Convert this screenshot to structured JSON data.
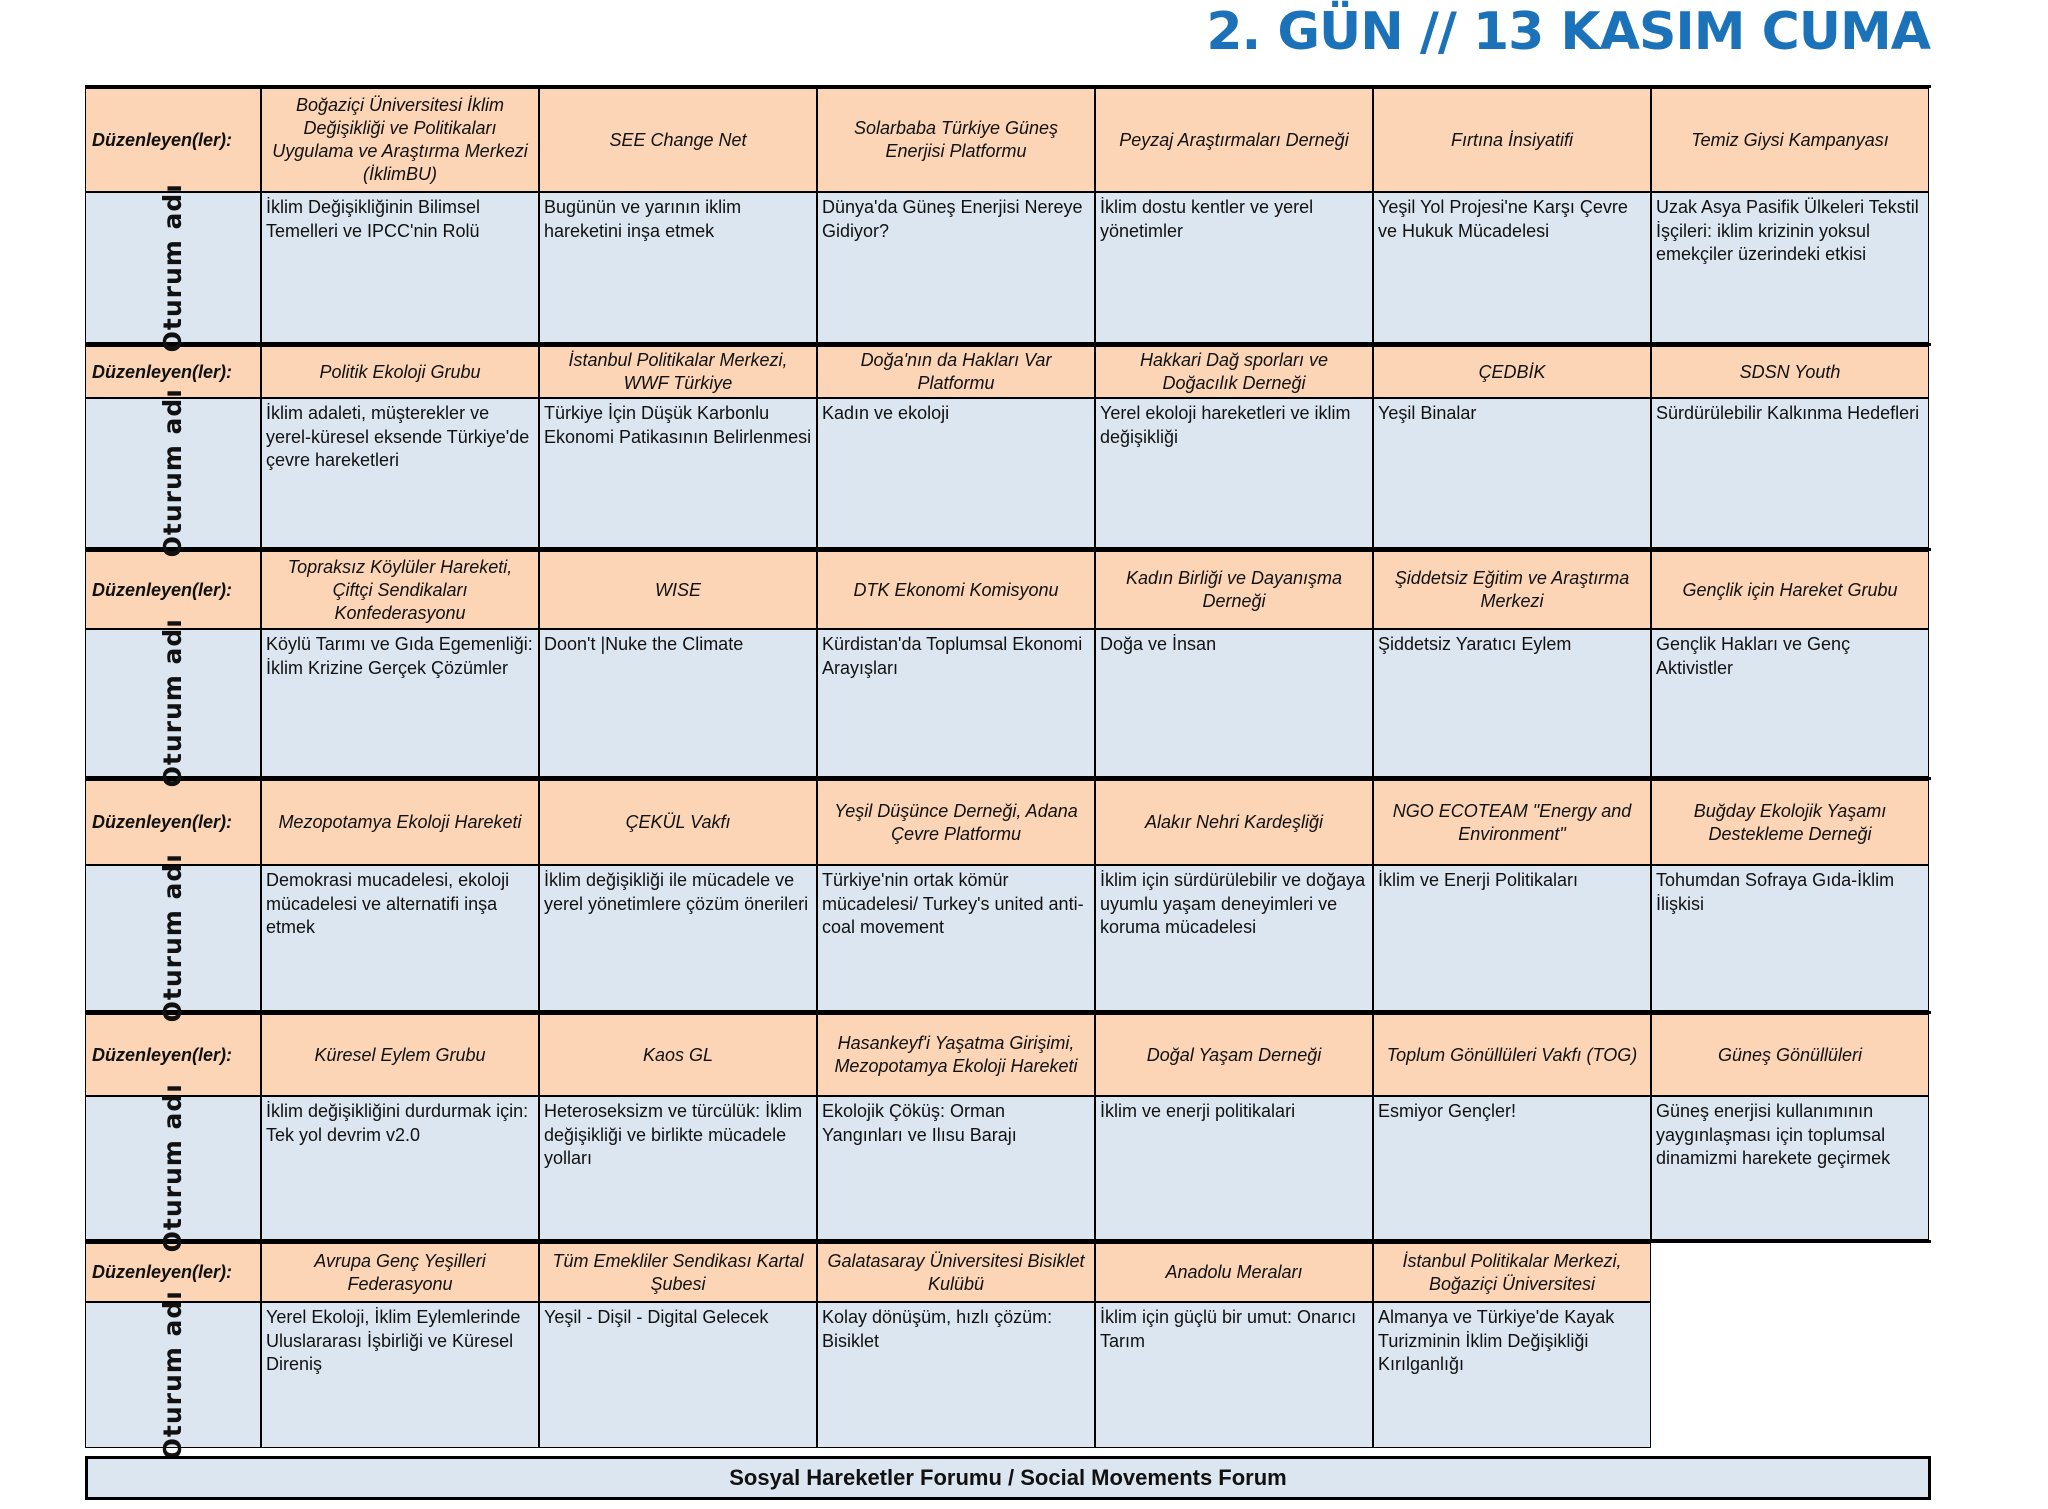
{
  "title": "2. GÜN // 13 KASIM CUMA",
  "labels": {
    "organizer": "Düzenleyen(ler):",
    "session": "Oturum adı"
  },
  "colors": {
    "organizer_bg": "#fbd5b5",
    "session_bg": "#dce6f1",
    "title": "#1b72b9"
  },
  "blocks": [
    {
      "organizers": [
        "Boğaziçi Üniversitesi İklim Değişikliği ve Politikaları Uygulama ve Araştırma Merkezi (İklimBU)",
        "SEE Change Net",
        "Solarbaba Türkiye Güneş Enerjisi Platformu",
        "Peyzaj Araştırmaları Derneği",
        "Fırtına İnsiyatifi",
        "Temiz Giysi Kampanyası"
      ],
      "sessions": [
        "İklim Değişikliğinin Bilimsel Temelleri ve IPCC'nin Rolü",
        "Bugünün ve yarının iklim hareketini inşa etmek",
        "Dünya'da Güneş Enerjisi Nereye Gidiyor?",
        "İklim dostu kentler ve yerel yönetimler",
        "Yeşil Yol Projesi'ne Karşı Çevre ve Hukuk Mücadelesi",
        "Uzak Asya  Pasifik Ülkeleri Tekstil İşçileri: iklim krizinin yoksul emekçiler üzerindeki etkisi"
      ]
    },
    {
      "organizers": [
        "Politik Ekoloji Grubu",
        "İstanbul Politikalar Merkezi, WWF Türkiye",
        "Doğa'nın da Hakları Var Platformu",
        "Hakkari Dağ sporları ve Doğacılık Derneği",
        "ÇEDBİK",
        "SDSN Youth"
      ],
      "sessions": [
        "İklim adaleti, müşterekler ve yerel-küresel eksende Türkiye'de çevre hareketleri",
        "Türkiye İçin Düşük Karbonlu Ekonomi Patikasının Belirlenmesi",
        "Kadın ve ekoloji",
        "Yerel ekoloji hareketleri ve iklim değişikliği",
        "Yeşil Binalar",
        "Sürdürülebilir Kalkınma Hedefleri"
      ]
    },
    {
      "organizers": [
        "Topraksız Köylüler Hareketi, Çiftçi Sendikaları Konfederasyonu",
        "WISE",
        "DTK Ekonomi Komisyonu",
        "Kadın Birliği ve Dayanışma Derneği",
        "Şiddetsiz Eğitim ve Araştırma Merkezi",
        "Gençlik için Hareket Grubu"
      ],
      "sessions": [
        " Köylü Tarımı ve Gıda Egemenliği: İklim Krizine Gerçek Çözümler",
        "Doon't |Nuke the Climate",
        "Kürdistan'da Toplumsal Ekonomi Arayışları",
        "Doğa ve İnsan",
        "Şiddetsiz Yaratıcı Eylem",
        "Gençlik Hakları ve Genç Aktivistler"
      ]
    },
    {
      "organizers": [
        "Mezopotamya Ekoloji Hareketi",
        "ÇEKÜL Vakfı",
        "Yeşil Düşünce Derneği, Adana Çevre Platformu",
        "Alakır Nehri Kardeşliği",
        "NGO ECOTEAM \"Energy and Environment\"",
        "Buğday Ekolojik Yaşamı Destekleme Derneği"
      ],
      "sessions": [
        "Demokrasi mucadelesi, ekoloji mücadelesi ve alternatifi inşa etmek",
        "İklim değişikliği ile mücadele  ve yerel yönetimlere çözüm önerileri",
        "Türkiye'nin ortak kömür mücadelesi/ Turkey's united anti-coal movement",
        "İklim için sürdürülebilir ve doğaya uyumlu yaşam deneyimleri ve koruma mücadelesi",
        "İklim ve Enerji Politikaları",
        "Tohumdan Sofraya Gıda-İklim İlişkisi"
      ]
    },
    {
      "organizers": [
        "Küresel Eylem Grubu",
        "Kaos GL",
        "Hasankeyf'i Yaşatma Girişimi, Mezopotamya Ekoloji Hareketi",
        "Doğal Yaşam Derneği",
        "Toplum Gönüllüleri Vakfı (TOG)",
        "Güneş Gönüllüleri"
      ],
      "sessions": [
        "İklim değişikliğini durdurmak için: Tek yol devrim v2.0",
        " Heteroseksizm ve türcülük: İklim değişikliği ve birlikte mücadele yolları",
        "Ekolojik Çöküş: Orman Yangınları ve Ilısu Barajı",
        "İklim ve enerji politikalari",
        "Esmiyor Gençler!",
        "Güneş enerjisi kullanımının yaygınlaşması için toplumsal dinamizmi harekete geçirmek"
      ]
    },
    {
      "organizers": [
        "Avrupa Genç Yeşilleri Federasyonu",
        "Tüm Emekliler Sendikası Kartal Şubesi",
        "Galatasaray Üniversitesi Bisiklet Kulübü",
        "Anadolu Meraları",
        "İstanbul Politikalar Merkezi, Boğaziçi Üniversitesi"
      ],
      "sessions": [
        "Yerel Ekoloji, İklim Eylemlerinde Uluslararası İşbirliği ve Küresel Direniş",
        "Yeşil - Dişil - Digital Gelecek",
        "Kolay dönüşüm, hızlı çözüm: Bisiklet",
        "İklim için güçlü bir umut: Onarıcı Tarım",
        "Almanya ve Türkiye'de Kayak Turizminin İklim Değişikliği Kırılganlığı"
      ]
    }
  ],
  "footer": "Sosyal Hareketler Forumu / Social Movements Forum"
}
